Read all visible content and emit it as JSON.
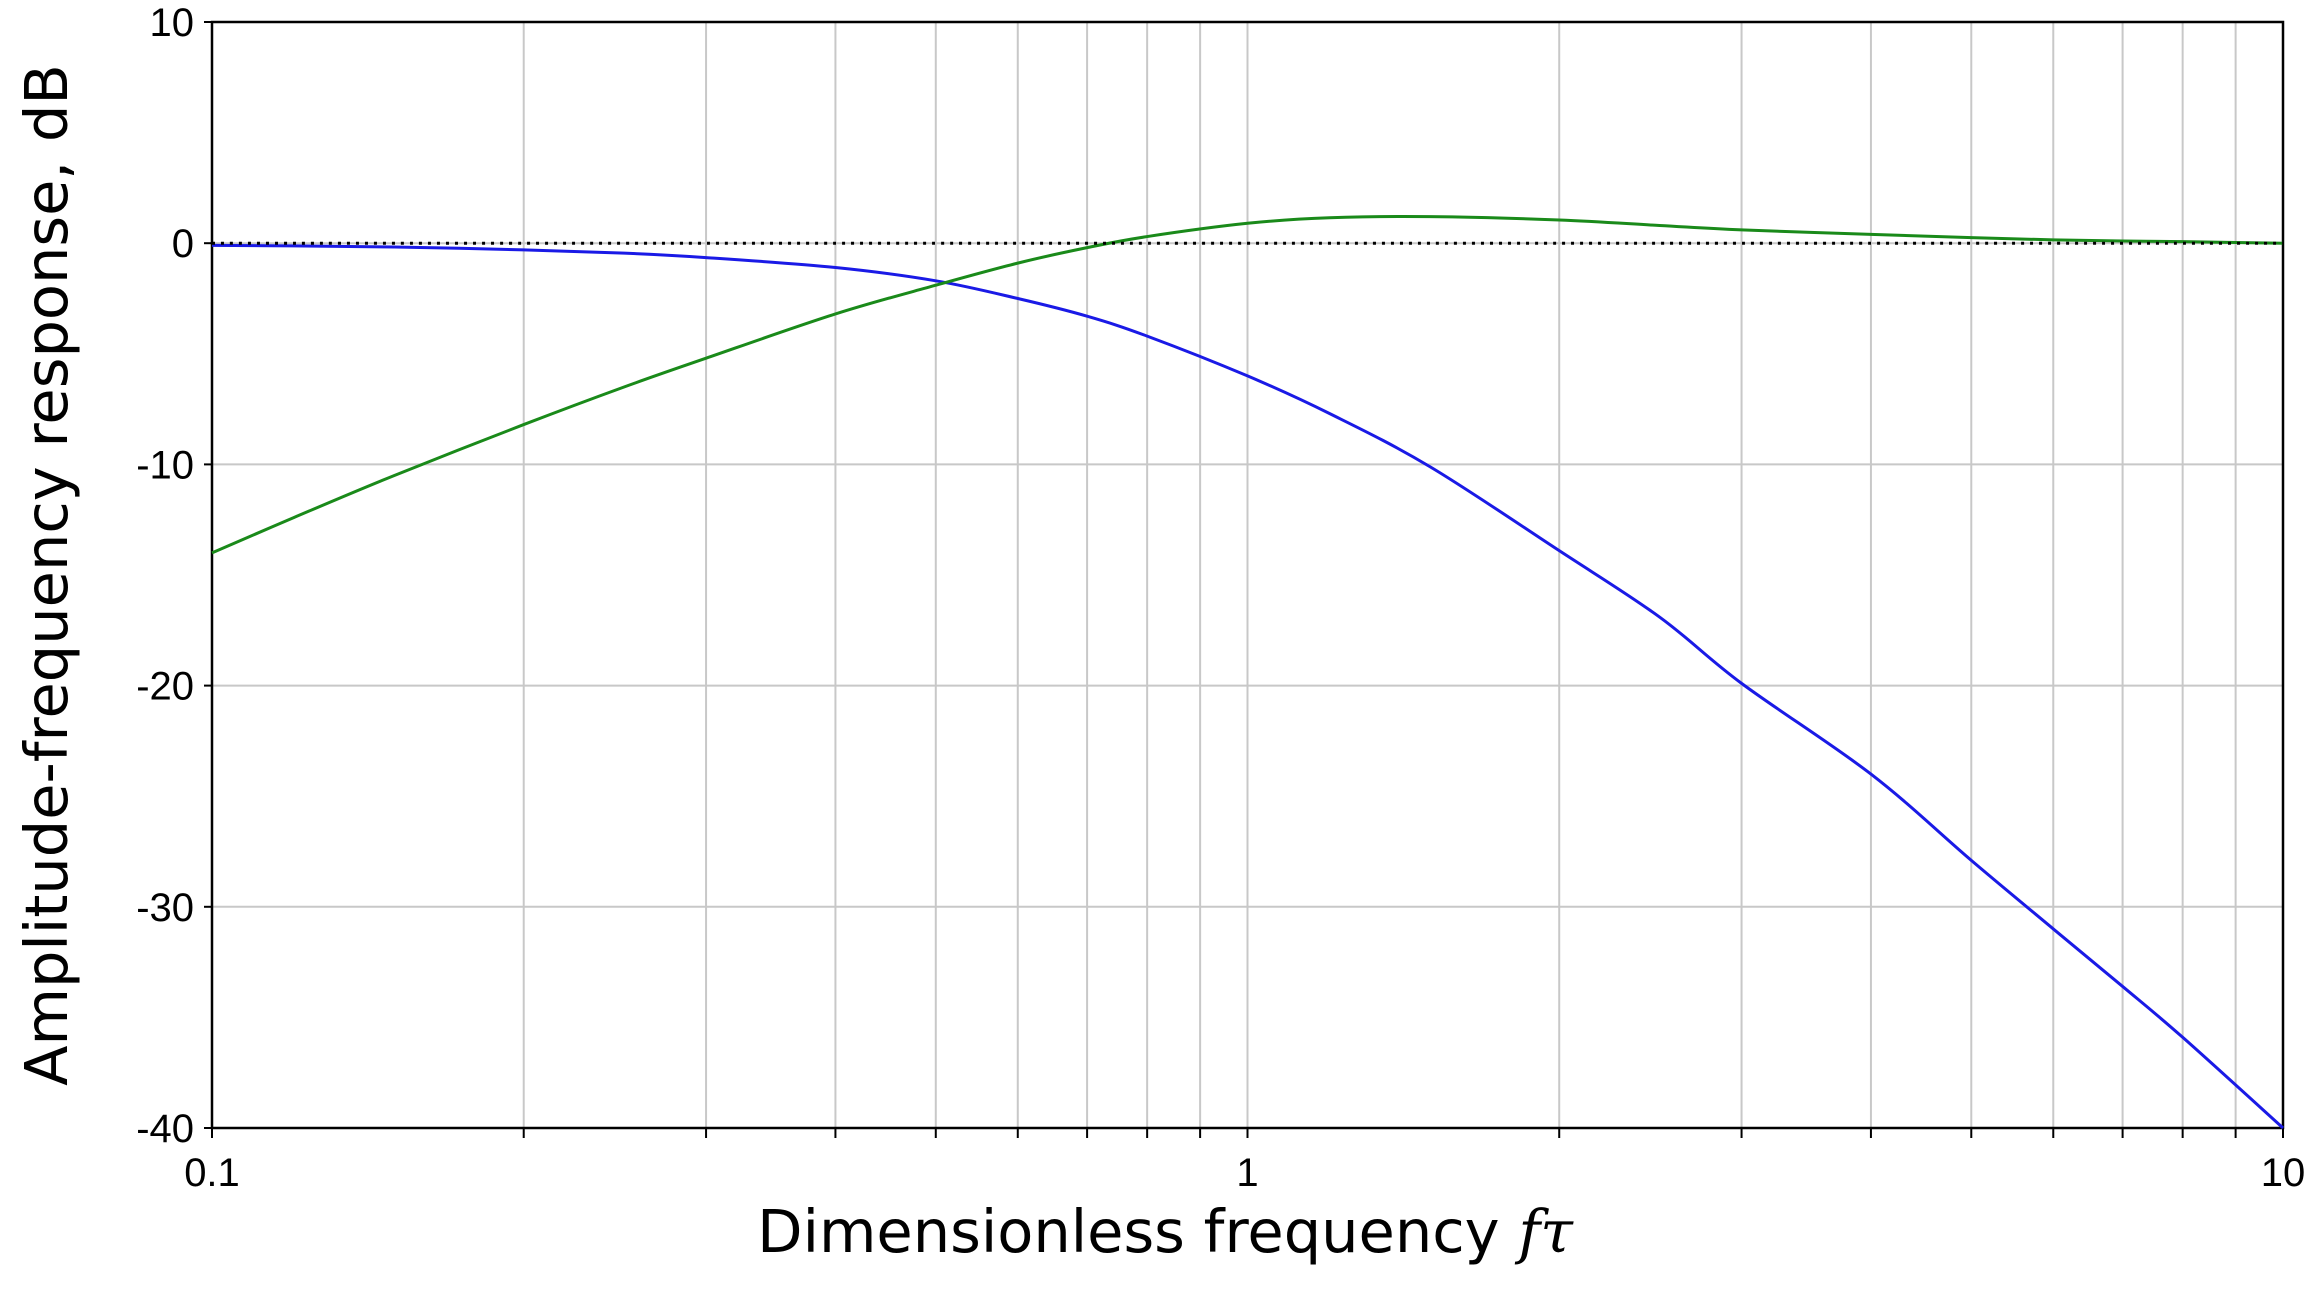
{
  "chart_data": {
    "type": "line",
    "xlabel": "Dimensionless frequency",
    "xlabel_symbol": "fτ",
    "ylabel": "Amplitude-frequency response, dB",
    "x_scale": "log",
    "xlim": [
      0.1,
      10
    ],
    "ylim": [
      -40,
      10
    ],
    "grid": true,
    "x_ticks": [
      "0.1",
      "1",
      "10"
    ],
    "y_ticks": [
      "10",
      "0",
      "-10",
      "-20",
      "-30",
      "-40"
    ],
    "x": [
      0.1,
      0.12,
      0.15,
      0.2,
      0.25,
      0.3,
      0.4,
      0.5,
      0.6,
      0.7,
      0.8,
      1.0,
      1.2,
      1.5,
      2.0,
      2.5,
      3.0,
      4.0,
      5.0,
      6.0,
      7.0,
      8.0,
      10.0
    ],
    "series": [
      {
        "color": "#1a1ae6",
        "style": "solid",
        "values": [
          -0.1,
          -0.12,
          -0.17,
          -0.3,
          -0.45,
          -0.65,
          -1.1,
          -1.7,
          -2.5,
          -3.3,
          -4.2,
          -6.0,
          -7.7,
          -10.1,
          -13.9,
          -16.9,
          -19.9,
          -24.0,
          -27.9,
          -31.0,
          -33.6,
          -35.9,
          -40.0
        ]
      },
      {
        "color": "#1a8a1a",
        "style": "solid",
        "values": [
          -14.0,
          -12.4,
          -10.5,
          -8.2,
          -6.5,
          -5.2,
          -3.2,
          -1.9,
          -0.9,
          -0.2,
          0.3,
          0.9,
          1.15,
          1.2,
          1.05,
          0.8,
          0.6,
          0.4,
          0.25,
          0.15,
          0.1,
          0.07,
          0.0
        ]
      },
      {
        "color": "#000000",
        "style": "dotted",
        "values": [
          0,
          0,
          0,
          0,
          0,
          0,
          0,
          0,
          0,
          0,
          0,
          0,
          0,
          0,
          0,
          0,
          0,
          0,
          0,
          0,
          0,
          0,
          0
        ]
      }
    ]
  }
}
